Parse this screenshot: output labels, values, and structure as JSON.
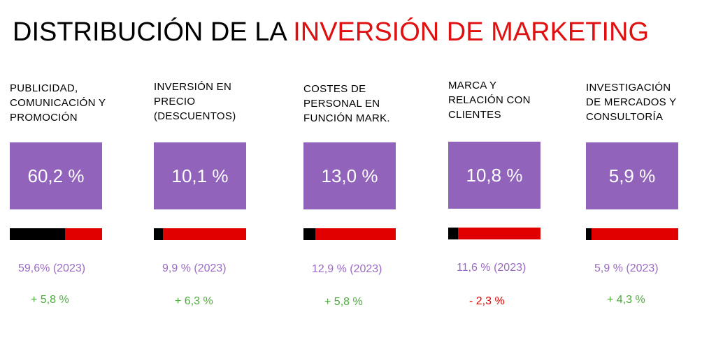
{
  "title": {
    "part1": "DISTRIBUCIÓN DE LA ",
    "part2": "INVERSIÓN DE MARKETING",
    "color_part1": "#000000",
    "color_part2": "#e01010"
  },
  "colors": {
    "box": "#9163bb",
    "bar_bg": "#e10000",
    "bar_fill": "#000000",
    "prev_text": "#9b6bc4",
    "positive": "#4daa3c",
    "negative": "#e00000"
  },
  "chart_data": {
    "type": "bar",
    "categories": [
      "PUBLICIDAD, COMUNICACIÓN Y PROMOCIÓN",
      "INVERSIÓN EN PRECIO (DESCUENTOS)",
      "COSTES DE PERSONAL EN FUNCIÓN MARK.",
      "MARCA Y RELACIÓN CON CLIENTES",
      "INVESTIGACIÓN DE MERCADOS Y CONSULTORÍA"
    ],
    "series": [
      {
        "values": [
          60.2,
          10.1,
          13.0,
          10.8,
          5.9
        ]
      },
      {
        "values": [
          59.6,
          9.9,
          12.9,
          11.6,
          5.9
        ]
      }
    ],
    "ylim": [
      0,
      100
    ]
  },
  "items": [
    {
      "label": "PUBLICIDAD,\nCOMUNICACIÓN Y\nPROMOCIÓN",
      "value_text": "60,2 %",
      "value": 60.2,
      "prev_text": "59,6% (2023)",
      "change_text": "+ 5,8 %",
      "change_sign": "pos"
    },
    {
      "label": "INVERSIÓN EN\nPRECIO\n(DESCUENTOS)",
      "value_text": "10,1 %",
      "value": 10.1,
      "prev_text": "9,9 % (2023)",
      "change_text": "+ 6,3 %",
      "change_sign": "pos"
    },
    {
      "label": "COSTES DE\nPERSONAL EN\nFUNCIÓN MARK.",
      "value_text": "13,0 %",
      "value": 13.0,
      "prev_text": "12,9 % (2023)",
      "change_text": "+ 5,8 %",
      "change_sign": "pos"
    },
    {
      "label": "MARCA Y\nRELACIÓN CON\nCLIENTES",
      "value_text": "10,8 %",
      "value": 10.8,
      "prev_text": "11,6 % (2023)",
      "change_text": "- 2,3 %",
      "change_sign": "neg"
    },
    {
      "label": "INVESTIGACIÓN\nDE MERCADOS Y\nCONSULTORÍA",
      "value_text": "5,9 %",
      "value": 5.9,
      "prev_text": "5,9 % (2023)",
      "change_text": "+ 4,3 %",
      "change_sign": "pos"
    }
  ]
}
